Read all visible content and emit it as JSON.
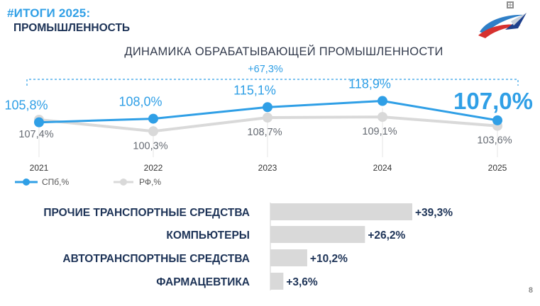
{
  "header": {
    "hashtag": "#ИТОГИ 2025:",
    "subtitle": "ПРОМЫШЛЕННОСТЬ"
  },
  "page_number": "8",
  "colors": {
    "spb": "#2f9fe6",
    "rf": "#d9d9d9",
    "bar": "#d9d9d9",
    "dark_text": "#1d3357"
  },
  "chart_data": [
    {
      "type": "line",
      "title": "ДИНАМИКА ОБРАБАТЫВАЮЩЕЙ ПРОМЫШЛЕННОСТИ",
      "x": [
        "2021",
        "2022",
        "2023",
        "2024",
        "2025"
      ],
      "series": [
        {
          "name": "СПб,%",
          "values": [
            105.8,
            108.0,
            115.1,
            118.9,
            107.0
          ],
          "labels": [
            "105,8%",
            "108,0%",
            "115,1%",
            "118,9%",
            "107,0%"
          ]
        },
        {
          "name": "РФ,%",
          "values": [
            107.4,
            100.3,
            108.7,
            109.1,
            103.6
          ],
          "labels": [
            "107,4%",
            "100,3%",
            "108,7%",
            "109,1%",
            "103,6%"
          ]
        }
      ],
      "annotations": [
        {
          "text": "+67,3%",
          "spans": [
            "2021",
            "2025"
          ]
        }
      ],
      "legend_position": "bottom-left",
      "grid": false
    },
    {
      "type": "bar",
      "orientation": "horizontal",
      "categories": [
        "ПРОЧИЕ ТРАНСПОРТНЫЕ СРЕДСТВА",
        "КОМПЬЮТЕРЫ",
        "АВТОТРАНСПОРТНЫЕ СРЕДСТВА",
        "ФАРМАЦЕВТИКА"
      ],
      "values": [
        39.3,
        26.2,
        10.2,
        3.6
      ],
      "labels": [
        "+39,3%",
        "+26,2%",
        "+10,2%",
        "+3,6%"
      ]
    }
  ]
}
